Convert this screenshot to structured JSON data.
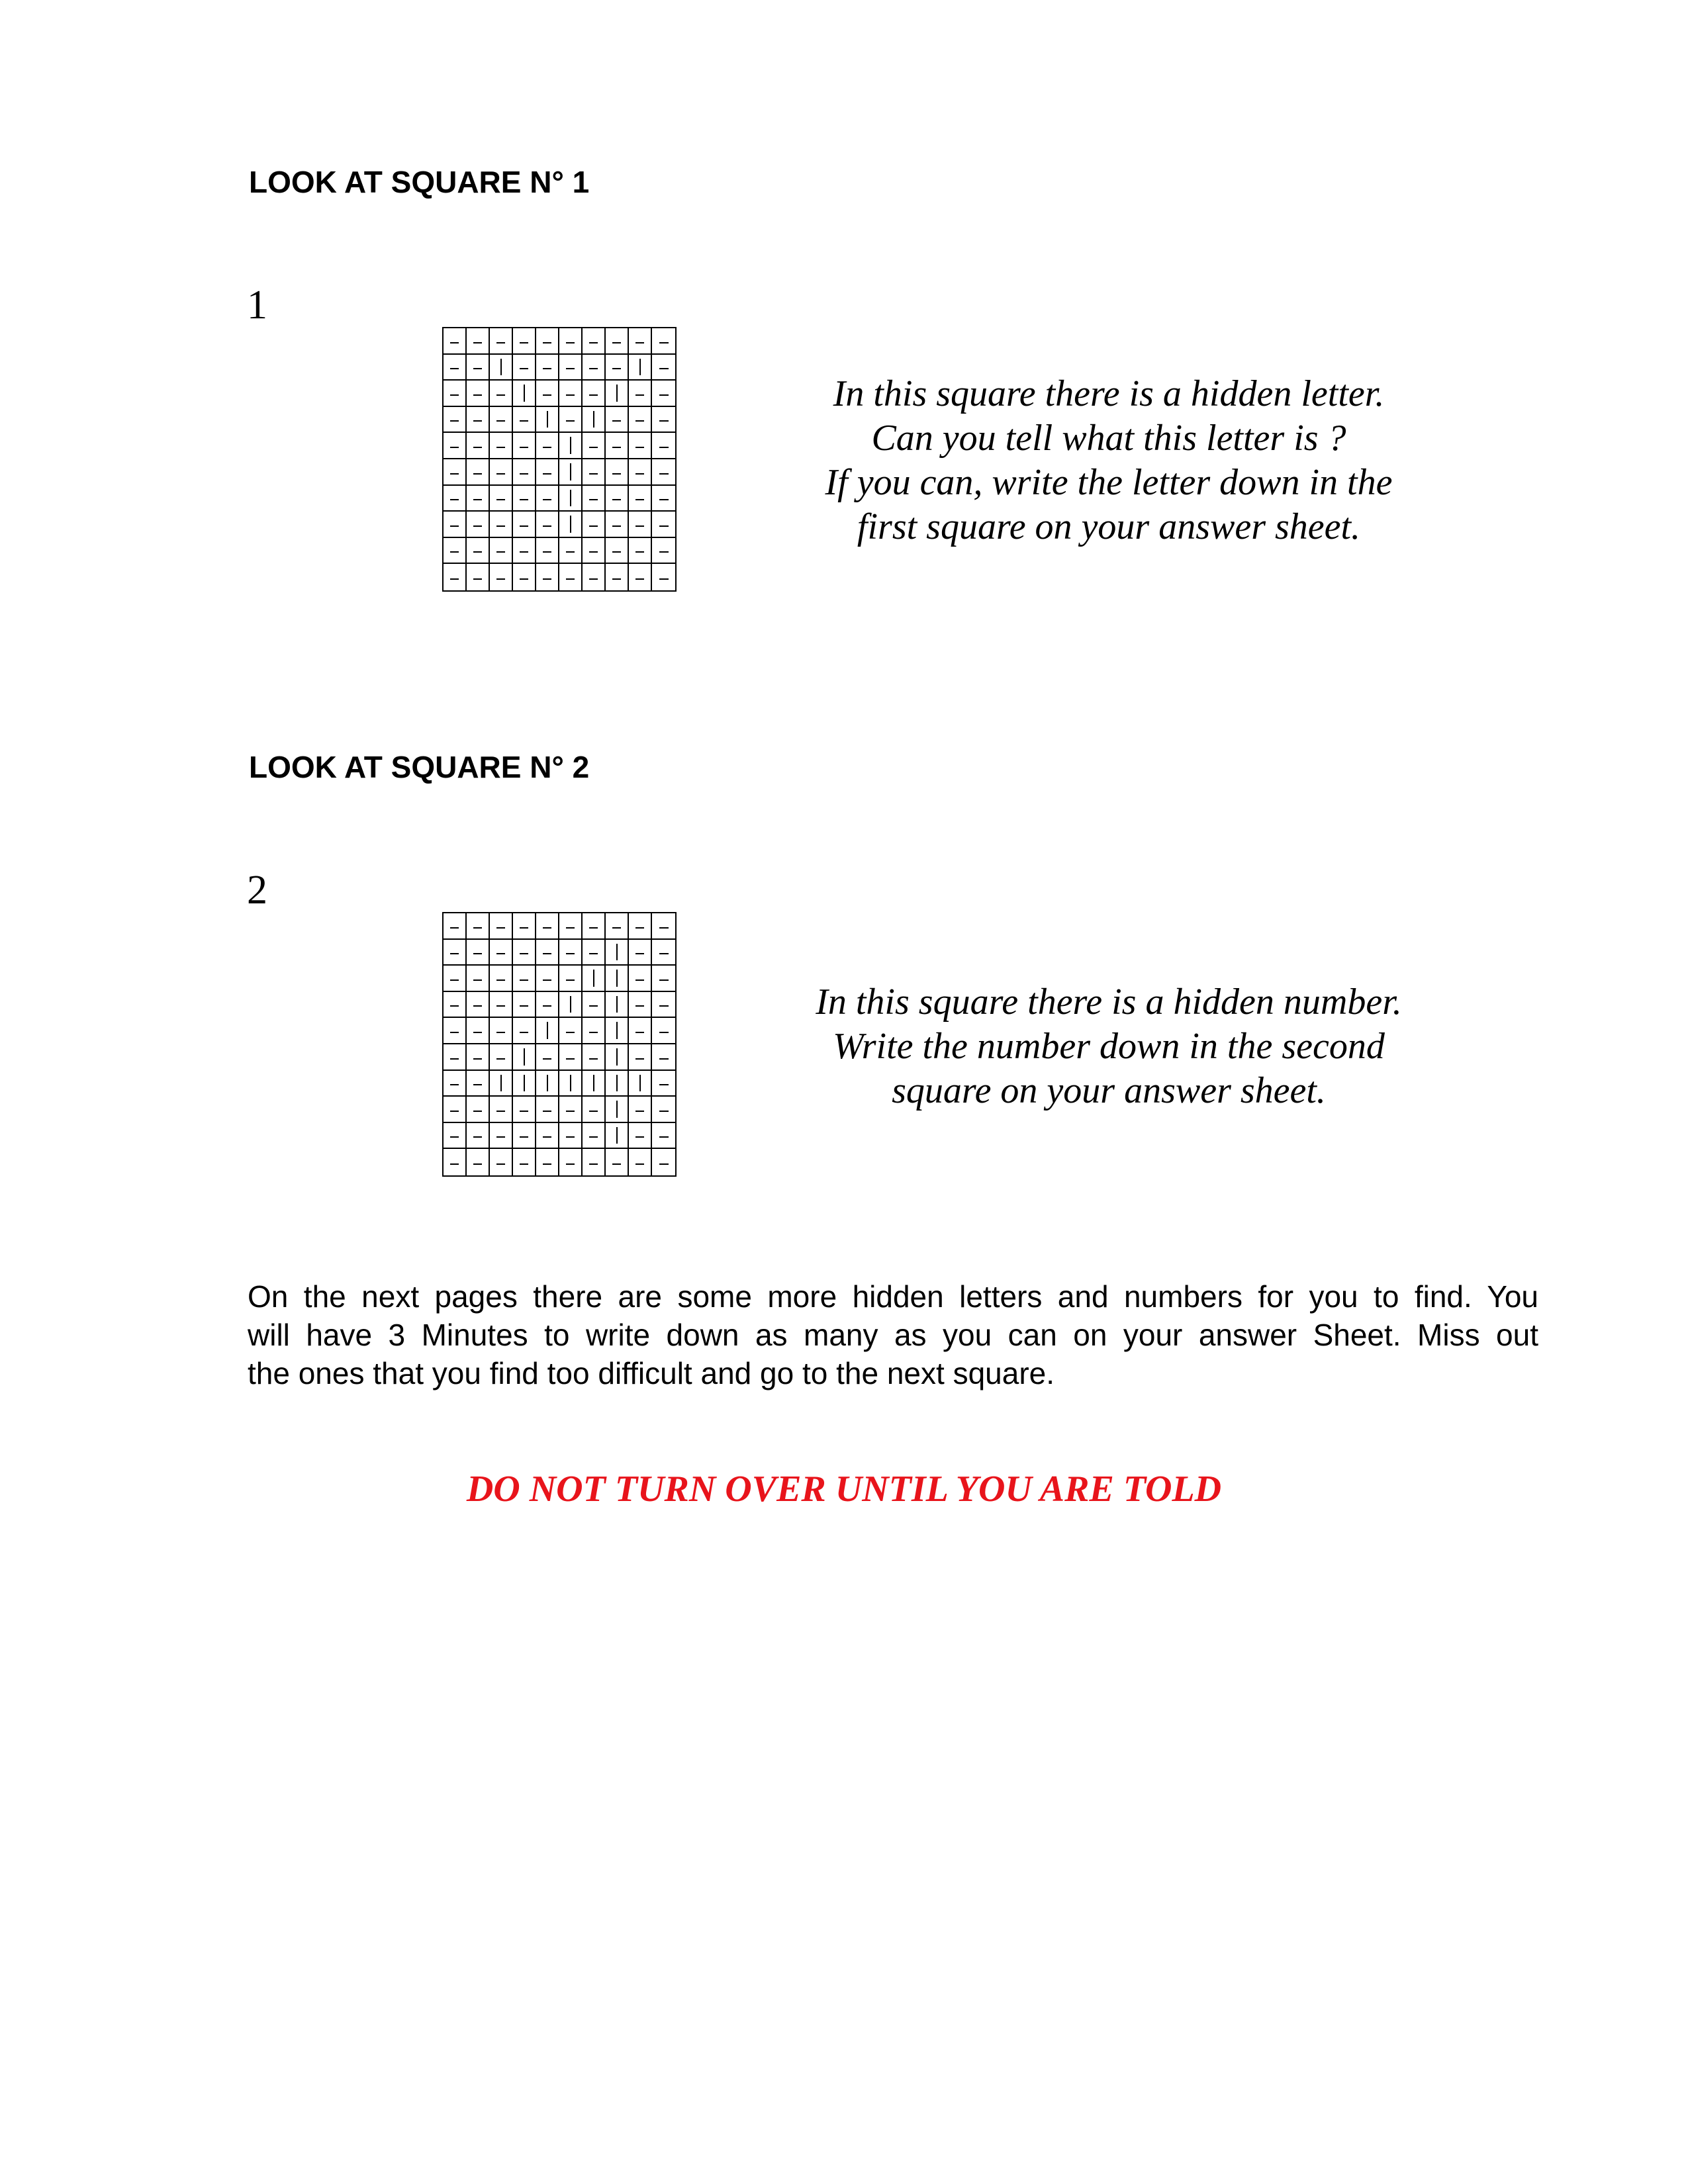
{
  "square1": {
    "heading": "LOOK AT SQUARE N° 1",
    "number": "1",
    "grid": [
      "----------",
      "--|-----|-",
      "---|---|--",
      "----|-|---",
      "-----|----",
      "-----|----",
      "-----|----",
      "-----|----",
      "----------",
      "----------"
    ],
    "instructions": [
      "In this square there is a hidden letter.",
      "Can you tell what this letter is ?",
      "If you can, write the letter down in the",
      "first square on your answer sheet."
    ]
  },
  "square2": {
    "heading": "LOOK AT SQUARE N° 2",
    "number": "2",
    "grid": [
      "----------",
      "-------|--",
      "------||--",
      "-----|-|--",
      "----|--|--",
      "---|---|--",
      "--|||||||-",
      "-------|--",
      "-------|--",
      "----------"
    ],
    "instructions": [
      "In this square there is a hidden number.",
      "Write the number down in the second",
      "square on your answer sheet."
    ]
  },
  "paragraph": [
    "On the next pages there are some more hidden letters and numbers for you to find. You",
    "will have 3 Minutes to write down as many as you can on your answer Sheet. Miss out",
    "the ones that you find too difficult and go to the next square."
  ],
  "warning": "DO NOT TURN OVER UNTIL YOU ARE TOLD",
  "colors": {
    "warning": "#e8141b",
    "text": "#000000"
  }
}
